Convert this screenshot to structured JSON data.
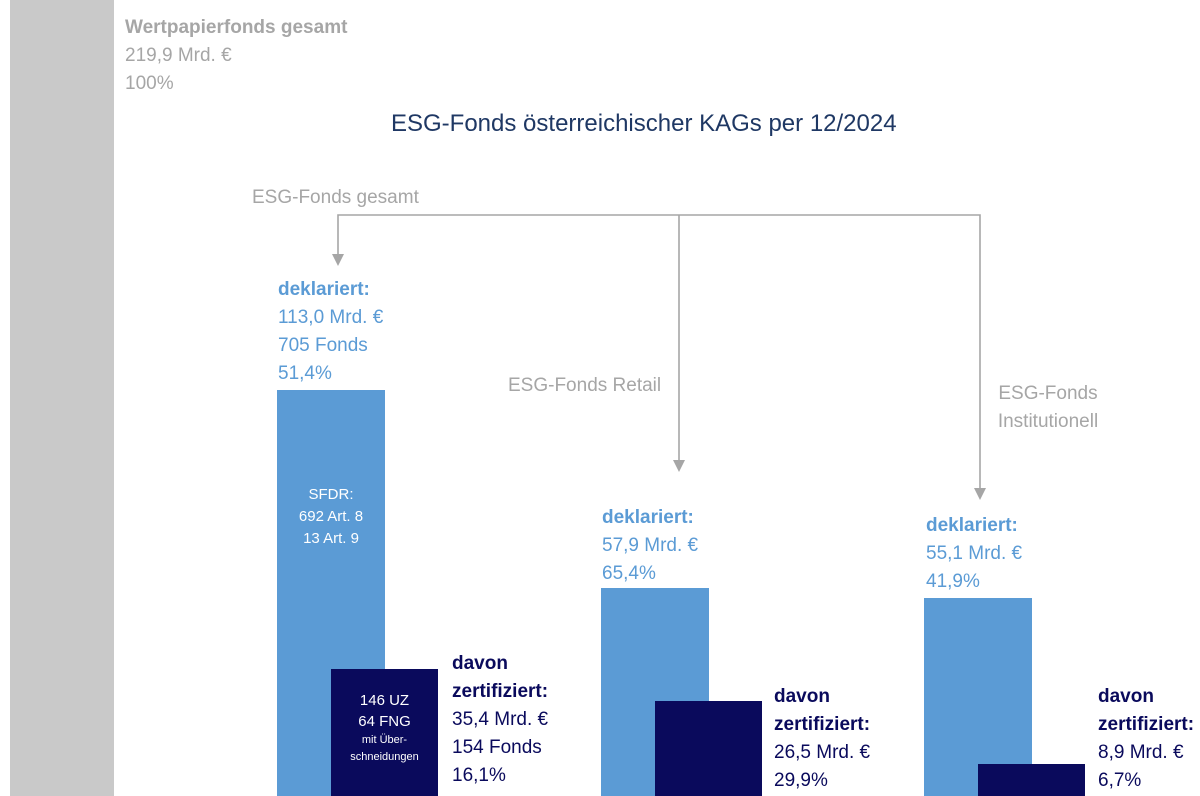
{
  "chart_data": {
    "type": "bar",
    "title": "ESG-Fonds österreichischer KAGs per 12/2024",
    "unit": "Mrd. €",
    "total": {
      "label": "Wertpapierfonds gesamt",
      "value": 219.9,
      "value_text": "219,9 Mrd. €",
      "share_text": "100%"
    },
    "groups": [
      {
        "id": "gesamt",
        "category": "ESG-Fonds gesamt",
        "declared": {
          "heading": "deklariert:",
          "value": 113.0,
          "value_text": "113,0 Mrd. €",
          "funds_text": "705 Fonds",
          "share": 51.4,
          "share_text": "51,4%",
          "inner_lines": [
            "SFDR:",
            "692 Art. 8",
            "13 Art. 9"
          ]
        },
        "certified": {
          "heading_lines": [
            "davon",
            "zertifiziert:"
          ],
          "value": 35.4,
          "value_text": "35,4 Mrd. €",
          "funds_text": "154 Fonds",
          "share": 16.1,
          "share_text": "16,1%",
          "inner_lines": [
            "146 UZ",
            "64 FNG",
            "mit Über-",
            "schneidungen"
          ]
        }
      },
      {
        "id": "retail",
        "category": "ESG-Fonds Retail",
        "declared": {
          "heading": "deklariert:",
          "value": 57.9,
          "value_text": "57,9 Mrd. €",
          "share": 65.4,
          "share_text": "65,4%"
        },
        "certified": {
          "heading_lines": [
            "davon",
            "zertifiziert:"
          ],
          "value": 26.5,
          "value_text": "26,5 Mrd. €",
          "share": 29.9,
          "share_text": "29,9%"
        }
      },
      {
        "id": "institutionell",
        "category_lines": [
          "ESG-Fonds",
          "Institutionell"
        ],
        "declared": {
          "heading": "deklariert:",
          "value": 55.1,
          "value_text": "55,1 Mrd. €",
          "share": 41.9,
          "share_text": "41,9%"
        },
        "certified": {
          "heading_lines": [
            "davon",
            "zertifiziert:"
          ],
          "value": 8.9,
          "value_text": "8,9 Mrd. €",
          "share": 6.7,
          "share_text": "6,7%"
        }
      }
    ],
    "colors": {
      "total": "#c9c9c9",
      "declared": "#5b9bd5",
      "certified": "#0a0a5c",
      "title": "#1f3864",
      "connector": "#a6a6a6"
    }
  }
}
